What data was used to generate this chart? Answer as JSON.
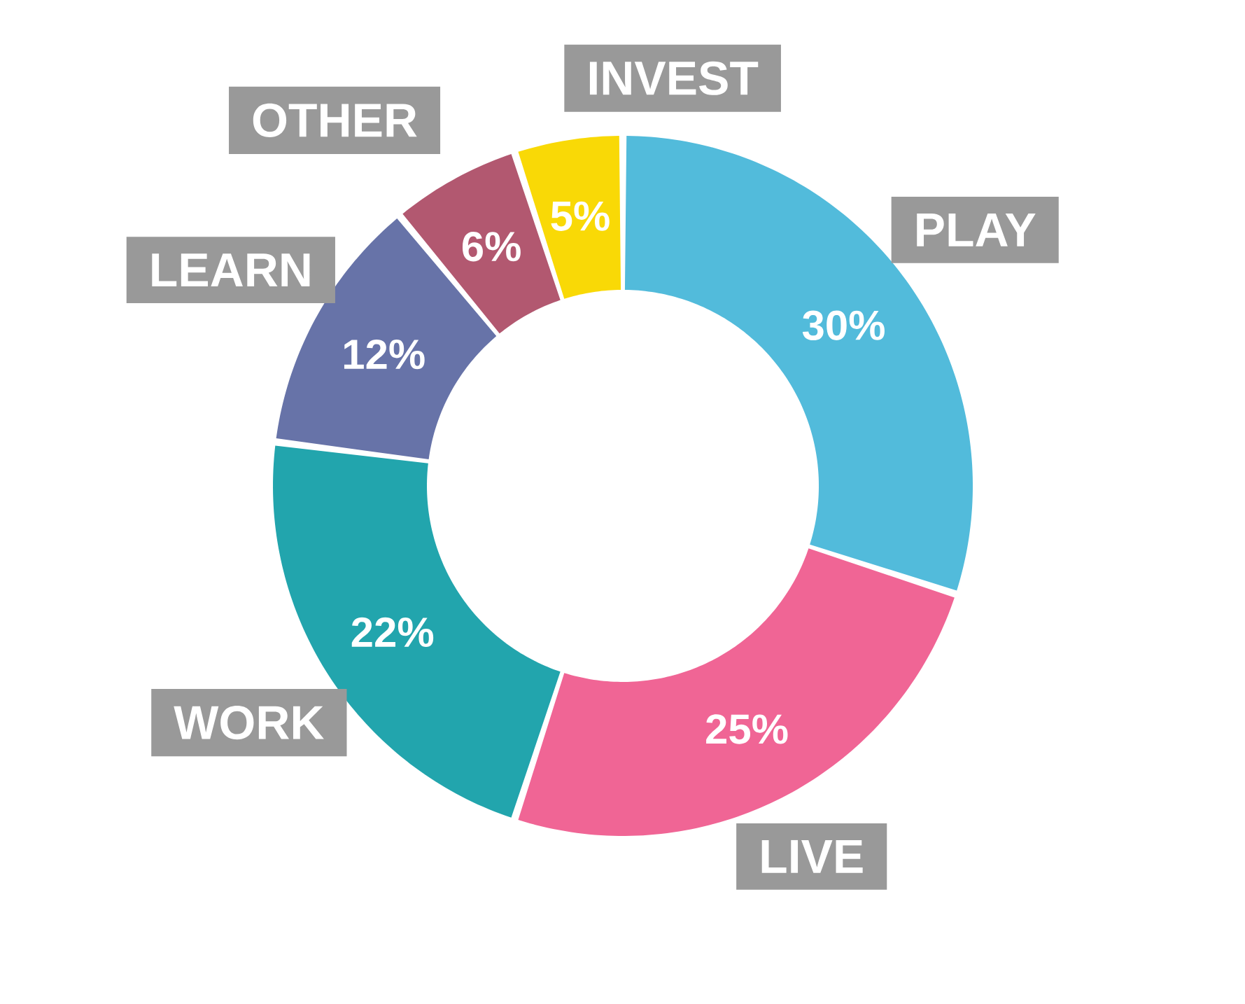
{
  "chart_data": {
    "type": "donut",
    "categories": [
      "PLAY",
      "LIVE",
      "WORK",
      "LEARN",
      "OTHER",
      "INVEST"
    ],
    "values": [
      30,
      25,
      22,
      12,
      6,
      5
    ],
    "colors": [
      "#52bbdb",
      "#f06595",
      "#22a5ad",
      "#6773a8",
      "#b25870",
      "#f9d906"
    ],
    "value_labels": [
      "30%",
      "25%",
      "22%",
      "12%",
      "6%",
      "5%"
    ]
  }
}
